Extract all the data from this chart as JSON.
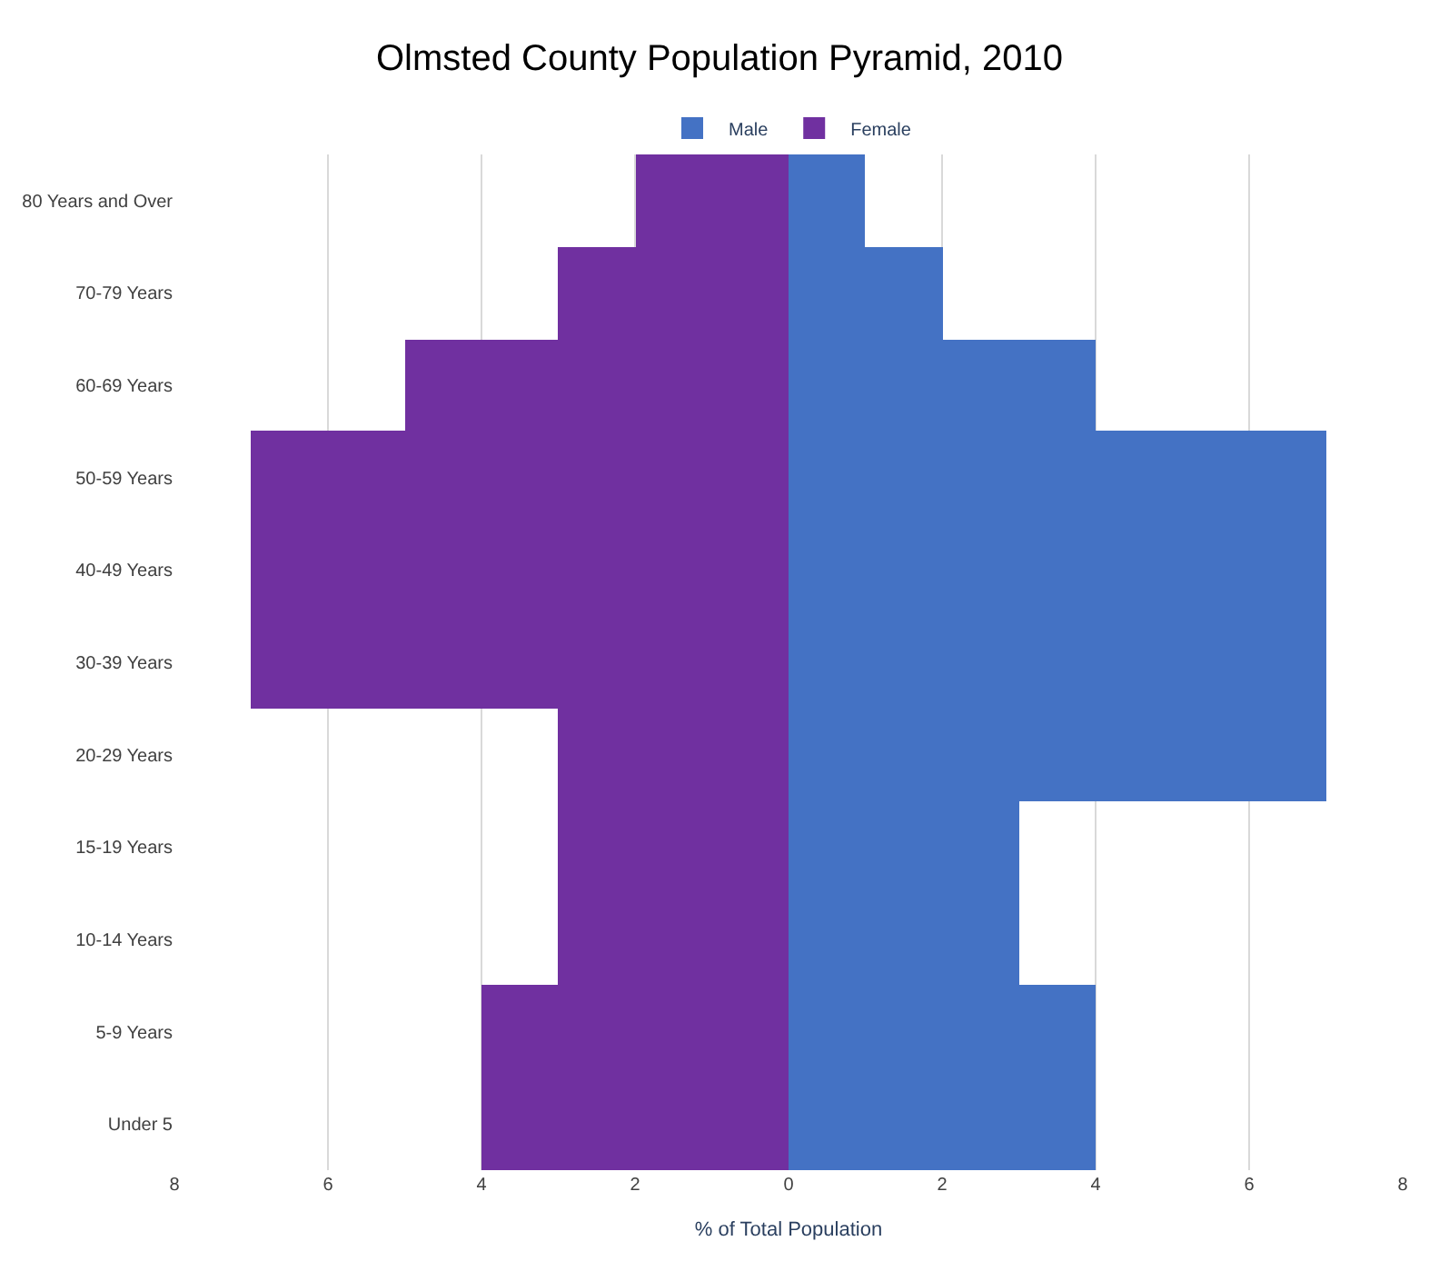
{
  "chart_data": {
    "type": "bar",
    "orientation": "horizontal",
    "title": "Olmsted County Population Pyramid, 2010",
    "xlabel": "% of Total Population",
    "categories": [
      "80 Years and Over",
      "70-79 Years",
      "60-69 Years",
      "50-59 Years",
      "40-49 Years",
      "30-39 Years",
      "20-29 Years",
      "15-19 Years",
      "10-14 Years",
      "5-9 Years",
      "Under 5"
    ],
    "series": [
      {
        "name": "Male",
        "color": "#4472c4",
        "values": [
          1,
          2,
          4,
          7,
          7,
          7,
          7,
          3,
          3,
          4,
          4
        ]
      },
      {
        "name": "Female",
        "color": "#7030a0",
        "values": [
          -2,
          -3,
          -5,
          -7,
          -7,
          -7,
          -3,
          -3,
          -3,
          -4,
          -4
        ]
      }
    ],
    "xlim": [
      -8,
      8
    ],
    "xticks": [
      {
        "value": -8,
        "label": "8"
      },
      {
        "value": -6,
        "label": "6"
      },
      {
        "value": -4,
        "label": "4"
      },
      {
        "value": -2,
        "label": "2"
      },
      0,
      2,
      4,
      6,
      8
    ],
    "grid": "x",
    "legend": "top",
    "stacked": true
  }
}
